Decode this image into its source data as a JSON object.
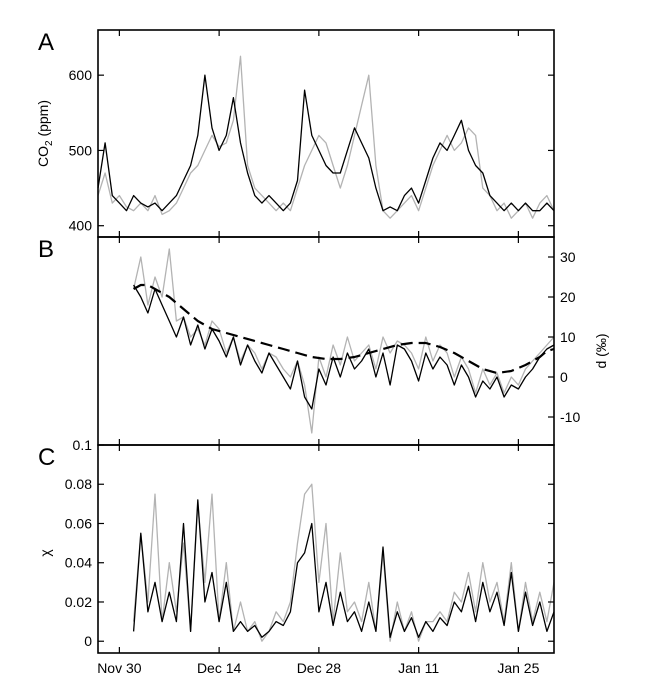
{
  "colors": {
    "series_gray": "#b3b3b3",
    "series_black": "#000000"
  },
  "chart_data": [
    {
      "type": "line",
      "panel_label": "A",
      "ylabel_main": "CO",
      "ylabel_sub": "2",
      "ylabel_unit": " (ppm)",
      "ylim": [
        385,
        660
      ],
      "yticks": [
        400,
        500,
        600
      ],
      "xlim": [
        0,
        64
      ],
      "xticks": [
        {
          "x": 3,
          "label": "Nov 30"
        },
        {
          "x": 17,
          "label": "Dec 14"
        },
        {
          "x": 31,
          "label": "Dec 28"
        },
        {
          "x": 45,
          "label": "Jan 11"
        },
        {
          "x": 59,
          "label": "Jan 25"
        }
      ],
      "grid": false,
      "series": [
        {
          "style": "gray",
          "x": [
            0,
            1,
            2,
            3,
            4,
            5,
            6,
            7,
            8,
            9,
            10,
            11,
            12,
            13,
            14,
            15,
            16,
            17,
            18,
            19,
            20,
            21,
            22,
            23,
            24,
            25,
            26,
            27,
            28,
            29,
            30,
            31,
            32,
            33,
            34,
            35,
            36,
            37,
            38,
            39,
            40,
            41,
            42,
            43,
            44,
            45,
            46,
            47,
            48,
            49,
            50,
            51,
            52,
            53,
            54,
            55,
            56,
            57,
            58,
            59,
            60,
            61,
            62,
            63,
            64
          ],
          "y": [
            440,
            470,
            430,
            440,
            425,
            420,
            430,
            420,
            440,
            415,
            420,
            430,
            450,
            470,
            480,
            500,
            520,
            505,
            510,
            540,
            625,
            480,
            450,
            440,
            430,
            420,
            430,
            420,
            450,
            480,
            500,
            520,
            510,
            480,
            450,
            480,
            520,
            560,
            600,
            480,
            420,
            410,
            420,
            430,
            440,
            420,
            450,
            480,
            500,
            520,
            500,
            510,
            530,
            520,
            450,
            440,
            420,
            430,
            410,
            420,
            430,
            410,
            430,
            440,
            420
          ]
        },
        {
          "style": "black",
          "x": [
            0,
            1,
            2,
            3,
            4,
            5,
            6,
            7,
            8,
            9,
            10,
            11,
            12,
            13,
            14,
            15,
            16,
            17,
            18,
            19,
            20,
            21,
            22,
            23,
            24,
            25,
            26,
            27,
            28,
            29,
            30,
            31,
            32,
            33,
            34,
            35,
            36,
            37,
            38,
            39,
            40,
            41,
            42,
            43,
            44,
            45,
            46,
            47,
            48,
            49,
            50,
            51,
            52,
            53,
            54,
            55,
            56,
            57,
            58,
            59,
            60,
            61,
            62,
            63,
            64
          ],
          "y": [
            450,
            510,
            440,
            430,
            420,
            440,
            430,
            425,
            430,
            420,
            430,
            440,
            460,
            480,
            520,
            600,
            530,
            500,
            520,
            570,
            510,
            470,
            440,
            430,
            440,
            430,
            420,
            430,
            460,
            580,
            520,
            500,
            480,
            470,
            470,
            500,
            530,
            510,
            490,
            450,
            420,
            425,
            420,
            440,
            450,
            430,
            460,
            490,
            510,
            500,
            520,
            540,
            500,
            480,
            470,
            440,
            430,
            420,
            430,
            420,
            430,
            420,
            420,
            430,
            420
          ]
        }
      ]
    },
    {
      "type": "line",
      "panel_label": "B",
      "ylabel_right": "d (‰)",
      "ylim": [
        -17,
        35
      ],
      "yticks_right": [
        -10,
        0,
        10,
        20,
        30
      ],
      "xlim": [
        0,
        64
      ],
      "grid": false,
      "series": [
        {
          "style": "gray",
          "x": [
            5,
            6,
            7,
            8,
            9,
            10,
            11,
            12,
            13,
            14,
            15,
            16,
            17,
            18,
            19,
            20,
            21,
            22,
            23,
            24,
            25,
            26,
            27,
            28,
            29,
            30,
            31,
            32,
            33,
            34,
            35,
            36,
            37,
            38,
            39,
            40,
            41,
            42,
            43,
            44,
            45,
            46,
            47,
            48,
            49,
            50,
            51,
            52,
            53,
            54,
            55,
            56,
            57,
            58,
            59,
            60,
            61,
            62,
            63,
            64
          ],
          "y": [
            22,
            30,
            18,
            25,
            20,
            32,
            14,
            15,
            10,
            12,
            8,
            14,
            12,
            6,
            10,
            4,
            8,
            6,
            2,
            6,
            5,
            2,
            0,
            4,
            -2,
            -14,
            5,
            0,
            8,
            3,
            10,
            4,
            6,
            8,
            2,
            10,
            6,
            9,
            8,
            6,
            2,
            10,
            4,
            8,
            6,
            0,
            5,
            2,
            -4,
            2,
            -2,
            1,
            -4,
            0,
            -2,
            2,
            4,
            6,
            8,
            10
          ]
        },
        {
          "style": "black",
          "x": [
            5,
            6,
            7,
            8,
            9,
            10,
            11,
            12,
            13,
            14,
            15,
            16,
            17,
            18,
            19,
            20,
            21,
            22,
            23,
            24,
            25,
            26,
            27,
            28,
            29,
            30,
            31,
            32,
            33,
            34,
            35,
            36,
            37,
            38,
            39,
            40,
            41,
            42,
            43,
            44,
            45,
            46,
            47,
            48,
            49,
            50,
            51,
            52,
            53,
            54,
            55,
            56,
            57,
            58,
            59,
            60,
            61,
            62,
            63,
            64
          ],
          "y": [
            23,
            20,
            16,
            22,
            18,
            14,
            10,
            15,
            8,
            13,
            7,
            12,
            9,
            5,
            10,
            3,
            8,
            4,
            1,
            6,
            3,
            0,
            -3,
            4,
            -5,
            -8,
            2,
            -2,
            5,
            0,
            6,
            2,
            4,
            7,
            0,
            6,
            -2,
            8,
            7,
            4,
            -1,
            6,
            2,
            5,
            3,
            -2,
            3,
            0,
            -5,
            -1,
            -3,
            0,
            -5,
            -2,
            -3,
            0,
            2,
            5,
            7,
            8
          ]
        },
        {
          "style": "dashed",
          "x": [
            5,
            6,
            7,
            8,
            10,
            12,
            14,
            16,
            18,
            20,
            22,
            24,
            26,
            28,
            30,
            32,
            34,
            36,
            38,
            40,
            42,
            44,
            46,
            48,
            50,
            52,
            54,
            56,
            58,
            60,
            62,
            63,
            64
          ],
          "y": [
            22,
            23,
            23,
            22,
            20,
            17,
            14,
            12,
            11,
            10,
            9,
            8,
            7,
            6,
            5,
            4.5,
            4.5,
            5,
            6,
            7,
            8,
            8.5,
            8.5,
            7.5,
            6,
            4,
            2,
            1,
            1.5,
            3,
            5,
            6.5,
            7
          ]
        }
      ]
    },
    {
      "type": "line",
      "panel_label": "C",
      "ylabel": "χ",
      "ylim": [
        -0.006,
        0.1
      ],
      "yticks": [
        0,
        0.02,
        0.04,
        0.06,
        0.08,
        0.1
      ],
      "ytick_labels": [
        "0",
        "0.02",
        "0.04",
        "0.06",
        "0.08",
        "0.1"
      ],
      "xlim": [
        0,
        64
      ],
      "grid": false,
      "series": [
        {
          "style": "gray",
          "x": [
            5,
            6,
            7,
            8,
            9,
            10,
            11,
            12,
            13,
            14,
            15,
            16,
            17,
            18,
            19,
            20,
            21,
            22,
            23,
            24,
            25,
            26,
            27,
            28,
            29,
            30,
            31,
            32,
            33,
            34,
            35,
            36,
            37,
            38,
            39,
            40,
            41,
            42,
            43,
            44,
            45,
            46,
            47,
            48,
            49,
            50,
            51,
            52,
            53,
            54,
            55,
            56,
            57,
            58,
            59,
            60,
            61,
            62,
            63,
            64
          ],
          "y": [
            0.01,
            0.055,
            0.02,
            0.075,
            0.01,
            0.04,
            0.015,
            0.05,
            0.005,
            0.07,
            0.03,
            0.075,
            0.01,
            0.04,
            0.005,
            0.02,
            0.005,
            0.01,
            0.0,
            0.005,
            0.015,
            0.01,
            0.02,
            0.05,
            0.075,
            0.08,
            0.03,
            0.06,
            0.01,
            0.045,
            0.015,
            0.02,
            0.01,
            0.03,
            0.005,
            0.045,
            0.0,
            0.02,
            0.005,
            0.015,
            0.0,
            0.01,
            0.01,
            0.015,
            0.01,
            0.025,
            0.02,
            0.035,
            0.015,
            0.04,
            0.02,
            0.03,
            0.01,
            0.04,
            0.005,
            0.03,
            0.01,
            0.025,
            0.01,
            0.03
          ]
        },
        {
          "style": "black",
          "x": [
            5,
            6,
            7,
            8,
            9,
            10,
            11,
            12,
            13,
            14,
            15,
            16,
            17,
            18,
            19,
            20,
            21,
            22,
            23,
            24,
            25,
            26,
            27,
            28,
            29,
            30,
            31,
            32,
            33,
            34,
            35,
            36,
            37,
            38,
            39,
            40,
            41,
            42,
            43,
            44,
            45,
            46,
            47,
            48,
            49,
            50,
            51,
            52,
            53,
            54,
            55,
            56,
            57,
            58,
            59,
            60,
            61,
            62,
            63,
            64
          ],
          "y": [
            0.005,
            0.055,
            0.015,
            0.03,
            0.01,
            0.025,
            0.01,
            0.06,
            0.005,
            0.072,
            0.02,
            0.035,
            0.01,
            0.03,
            0.005,
            0.01,
            0.005,
            0.008,
            0.002,
            0.005,
            0.01,
            0.008,
            0.015,
            0.04,
            0.045,
            0.06,
            0.015,
            0.03,
            0.008,
            0.025,
            0.01,
            0.015,
            0.005,
            0.02,
            0.005,
            0.048,
            0.002,
            0.015,
            0.005,
            0.012,
            0.002,
            0.01,
            0.005,
            0.012,
            0.008,
            0.02,
            0.015,
            0.028,
            0.01,
            0.03,
            0.015,
            0.025,
            0.008,
            0.035,
            0.005,
            0.025,
            0.008,
            0.02,
            0.005,
            0.015
          ]
        }
      ]
    }
  ]
}
